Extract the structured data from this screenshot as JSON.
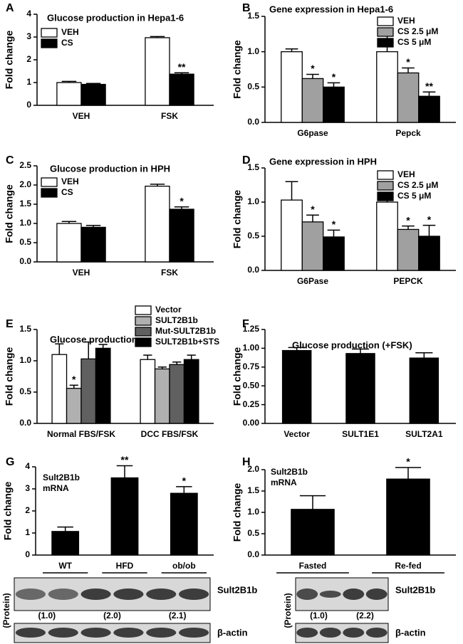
{
  "chart_data": [
    {
      "type": "bar",
      "panel": "A",
      "title": "Glucose production in Hepa1-6",
      "ylabel": "Fold change",
      "legend": "upper left",
      "categories": [
        "VEH",
        "FSK"
      ],
      "ylim": [
        0,
        4
      ],
      "yticks": [
        0,
        1,
        2,
        3,
        4
      ],
      "series": [
        {
          "name": "VEH",
          "color": "#ffffff",
          "values": [
            1.0,
            2.97
          ],
          "errors": [
            0.05,
            0.05
          ],
          "significance": [
            null,
            null
          ]
        },
        {
          "name": "CS",
          "color": "#000000",
          "values": [
            0.92,
            1.37
          ],
          "errors": [
            0.04,
            0.06
          ],
          "significance": [
            null,
            "**"
          ]
        }
      ]
    },
    {
      "type": "bar",
      "panel": "B",
      "title": "Gene expression in Hepa1-6",
      "ylabel": "Fold change",
      "legend": "upper right",
      "categories": [
        "G6pase",
        "Pepck"
      ],
      "ylim": [
        0,
        1.5
      ],
      "yticks": [
        {
          "value": 0,
          "label": "0.0"
        },
        0.5,
        {
          "value": 1,
          "label": "1.0"
        },
        1.5
      ],
      "series": [
        {
          "name": "VEH",
          "color": "#ffffff",
          "values": [
            1.0,
            1.0
          ],
          "errors": [
            0.04,
            0.27
          ],
          "significance": [
            null,
            null
          ]
        },
        {
          "name": "CS 2.5 μM",
          "color": "#a0a0a0",
          "values": [
            0.62,
            0.7
          ],
          "errors": [
            0.06,
            0.07
          ],
          "significance": [
            "*",
            "*"
          ]
        },
        {
          "name": "CS 5 μM",
          "color": "#000000",
          "values": [
            0.5,
            0.37
          ],
          "errors": [
            0.06,
            0.06
          ],
          "significance": [
            "*",
            "**"
          ]
        }
      ]
    },
    {
      "type": "bar",
      "panel": "C",
      "title": "Glucose production in HPH",
      "ylabel": "Fold change",
      "legend": "upper left",
      "categories": [
        "VEH",
        "FSK"
      ],
      "ylim": [
        0,
        2.5
      ],
      "yticks": [
        {
          "value": 0,
          "label": "0.0"
        },
        0.5,
        {
          "value": 1,
          "label": "1.0"
        },
        1.5,
        {
          "value": 2,
          "label": "2.0"
        },
        2.5
      ],
      "series": [
        {
          "name": "VEH",
          "color": "#ffffff",
          "values": [
            1.0,
            1.97
          ],
          "errors": [
            0.05,
            0.05
          ],
          "significance": [
            null,
            null
          ]
        },
        {
          "name": "CS",
          "color": "#000000",
          "values": [
            0.9,
            1.37
          ],
          "errors": [
            0.05,
            0.06
          ],
          "significance": [
            null,
            "*"
          ]
        }
      ]
    },
    {
      "type": "bar",
      "panel": "D",
      "title": "Gene expression in HPH",
      "ylabel": "Fold change",
      "legend": "upper right",
      "categories": [
        "G6Pase",
        "PEPCK"
      ],
      "ylim": [
        0,
        1.5
      ],
      "yticks": [
        {
          "value": 0,
          "label": "0.0"
        },
        0.5,
        {
          "value": 1,
          "label": "1.0"
        },
        1.5
      ],
      "series": [
        {
          "name": "VEH",
          "color": "#ffffff",
          "values": [
            1.03,
            1.0
          ],
          "errors": [
            0.27,
            0.05
          ],
          "significance": [
            null,
            null
          ]
        },
        {
          "name": "CS 2.5 μM",
          "color": "#a0a0a0",
          "values": [
            0.71,
            0.6
          ],
          "errors": [
            0.1,
            0.05
          ],
          "significance": [
            "*",
            "*"
          ]
        },
        {
          "name": "CS 5 μM",
          "color": "#000000",
          "values": [
            0.49,
            0.5
          ],
          "errors": [
            0.1,
            0.16
          ],
          "significance": [
            "*",
            "*"
          ]
        }
      ]
    },
    {
      "type": "bar",
      "panel": "E",
      "title": "Glucose production",
      "ylabel": "Fold change",
      "legend": "upper right",
      "categories": [
        "Normal FBS/FSK",
        "DCC FBS/FSK"
      ],
      "ylim": [
        0,
        1.5
      ],
      "yticks": [
        {
          "value": 0,
          "label": "0.0"
        },
        0.5,
        {
          "value": 1,
          "label": "1.0"
        },
        1.5
      ],
      "series": [
        {
          "name": "Vector",
          "color": "#ffffff",
          "values": [
            1.1,
            1.02
          ],
          "errors": [
            0.17,
            0.07
          ],
          "significance": [
            null,
            null
          ]
        },
        {
          "name": "SULT2B1b",
          "color": "#b0b0b0",
          "values": [
            0.56,
            0.87
          ],
          "errors": [
            0.05,
            0.03
          ],
          "significance": [
            "*",
            null
          ]
        },
        {
          "name": "Mut-SULT2B1b",
          "color": "#606060",
          "values": [
            1.03,
            0.94
          ],
          "errors": [
            0.27,
            0.04
          ],
          "significance": [
            null,
            null
          ]
        },
        {
          "name": "SULT2B1b+STS",
          "color": "#000000",
          "values": [
            1.2,
            1.02
          ],
          "errors": [
            0.06,
            0.07
          ],
          "significance": [
            null,
            null
          ]
        }
      ]
    },
    {
      "type": "bar",
      "panel": "F",
      "title": "Glucose production (+FSK)",
      "ylabel": "Fold change",
      "categories": [
        "Vector",
        "SULT1E1",
        "SULT2A1"
      ],
      "ylim": [
        0,
        1.25
      ],
      "yticks": [
        {
          "value": 0,
          "label": "0.00"
        },
        0.25,
        {
          "value": 0.5,
          "label": "0.50"
        },
        0.75,
        {
          "value": 1,
          "label": "1.00"
        },
        1.25
      ],
      "color": "#000000",
      "values": [
        0.97,
        0.93,
        0.87
      ],
      "errors": [
        0.04,
        0.06,
        0.07
      ],
      "significance": [
        null,
        null,
        null
      ]
    },
    {
      "type": "bar",
      "panel": "G",
      "annotation": [
        "Sult2B1b",
        "mRNA"
      ],
      "ylabel": "Fold change",
      "categories": [
        "WT",
        "HFD",
        "ob/ob"
      ],
      "ylim": [
        0,
        4
      ],
      "yticks": [
        0,
        1,
        2,
        3,
        4
      ],
      "color": "#000000",
      "values": [
        1.07,
        3.5,
        2.8
      ],
      "errors": [
        0.2,
        0.55,
        0.3
      ],
      "significance": [
        null,
        "**",
        "*"
      ],
      "blot": {
        "label": "Sult2B1b",
        "side_label": "(Protein)",
        "ratios": [
          "(1.0)",
          "(2.0)",
          "(2.1)"
        ],
        "loading_label": "β-actin"
      }
    },
    {
      "type": "bar",
      "panel": "H",
      "annotation": [
        "Sult2B1b",
        "mRNA"
      ],
      "ylabel": "Fold change",
      "categories": [
        "Fasted",
        "Re-fed"
      ],
      "ylim": [
        0,
        2.0
      ],
      "yticks": [
        {
          "value": 0,
          "label": "0.0"
        },
        0.5,
        {
          "value": 1,
          "label": "1.0"
        },
        1.5,
        {
          "value": 2,
          "label": "2.0"
        }
      ],
      "color": "#000000",
      "values": [
        1.07,
        1.78
      ],
      "errors": [
        0.32,
        0.27
      ],
      "significance": [
        null,
        "*"
      ],
      "blot": {
        "label": "Sult2B1b",
        "side_label": "(Protein)",
        "ratios": [
          "(1.0)",
          "(2.2)"
        ],
        "loading_label": "β-actin"
      }
    }
  ]
}
